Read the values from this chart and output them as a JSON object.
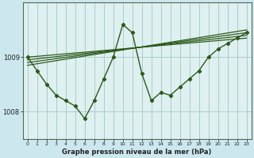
{
  "background_color": "#cce8ee",
  "plot_bg_color": "#dff0f0",
  "grid_color": "#aacccc",
  "line_color": "#2d5a1b",
  "title": "Graphe pression niveau de la mer (hPa)",
  "xlim": [
    -0.5,
    23.5
  ],
  "ylim": [
    1007.5,
    1010.0
  ],
  "yticks": [
    1008,
    1009
  ],
  "xticks": [
    0,
    1,
    2,
    3,
    4,
    5,
    6,
    7,
    8,
    9,
    10,
    11,
    12,
    13,
    14,
    15,
    16,
    17,
    18,
    19,
    20,
    21,
    22,
    23
  ],
  "straight_lines": [
    [
      [
        0,
        23
      ],
      [
        1009.0,
        1009.35
      ]
    ],
    [
      [
        0,
        23
      ],
      [
        1008.95,
        1009.4
      ]
    ],
    [
      [
        0,
        23
      ],
      [
        1008.9,
        1009.45
      ]
    ],
    [
      [
        0,
        23
      ],
      [
        1008.85,
        1009.5
      ]
    ]
  ],
  "main_x": [
    0,
    1,
    2,
    3,
    4,
    5,
    6,
    7,
    8,
    9,
    10,
    11,
    12,
    13,
    14,
    15,
    16,
    17,
    18,
    19,
    20,
    21,
    22,
    23
  ],
  "main_y": [
    1009.0,
    1008.75,
    1008.5,
    1008.3,
    1008.2,
    1008.1,
    1007.87,
    1008.2,
    1008.6,
    1009.0,
    1009.6,
    1009.45,
    1008.7,
    1008.2,
    1008.35,
    1008.3,
    1008.45,
    1008.6,
    1008.75,
    1009.0,
    1009.15,
    1009.25,
    1009.35,
    1009.45
  ]
}
